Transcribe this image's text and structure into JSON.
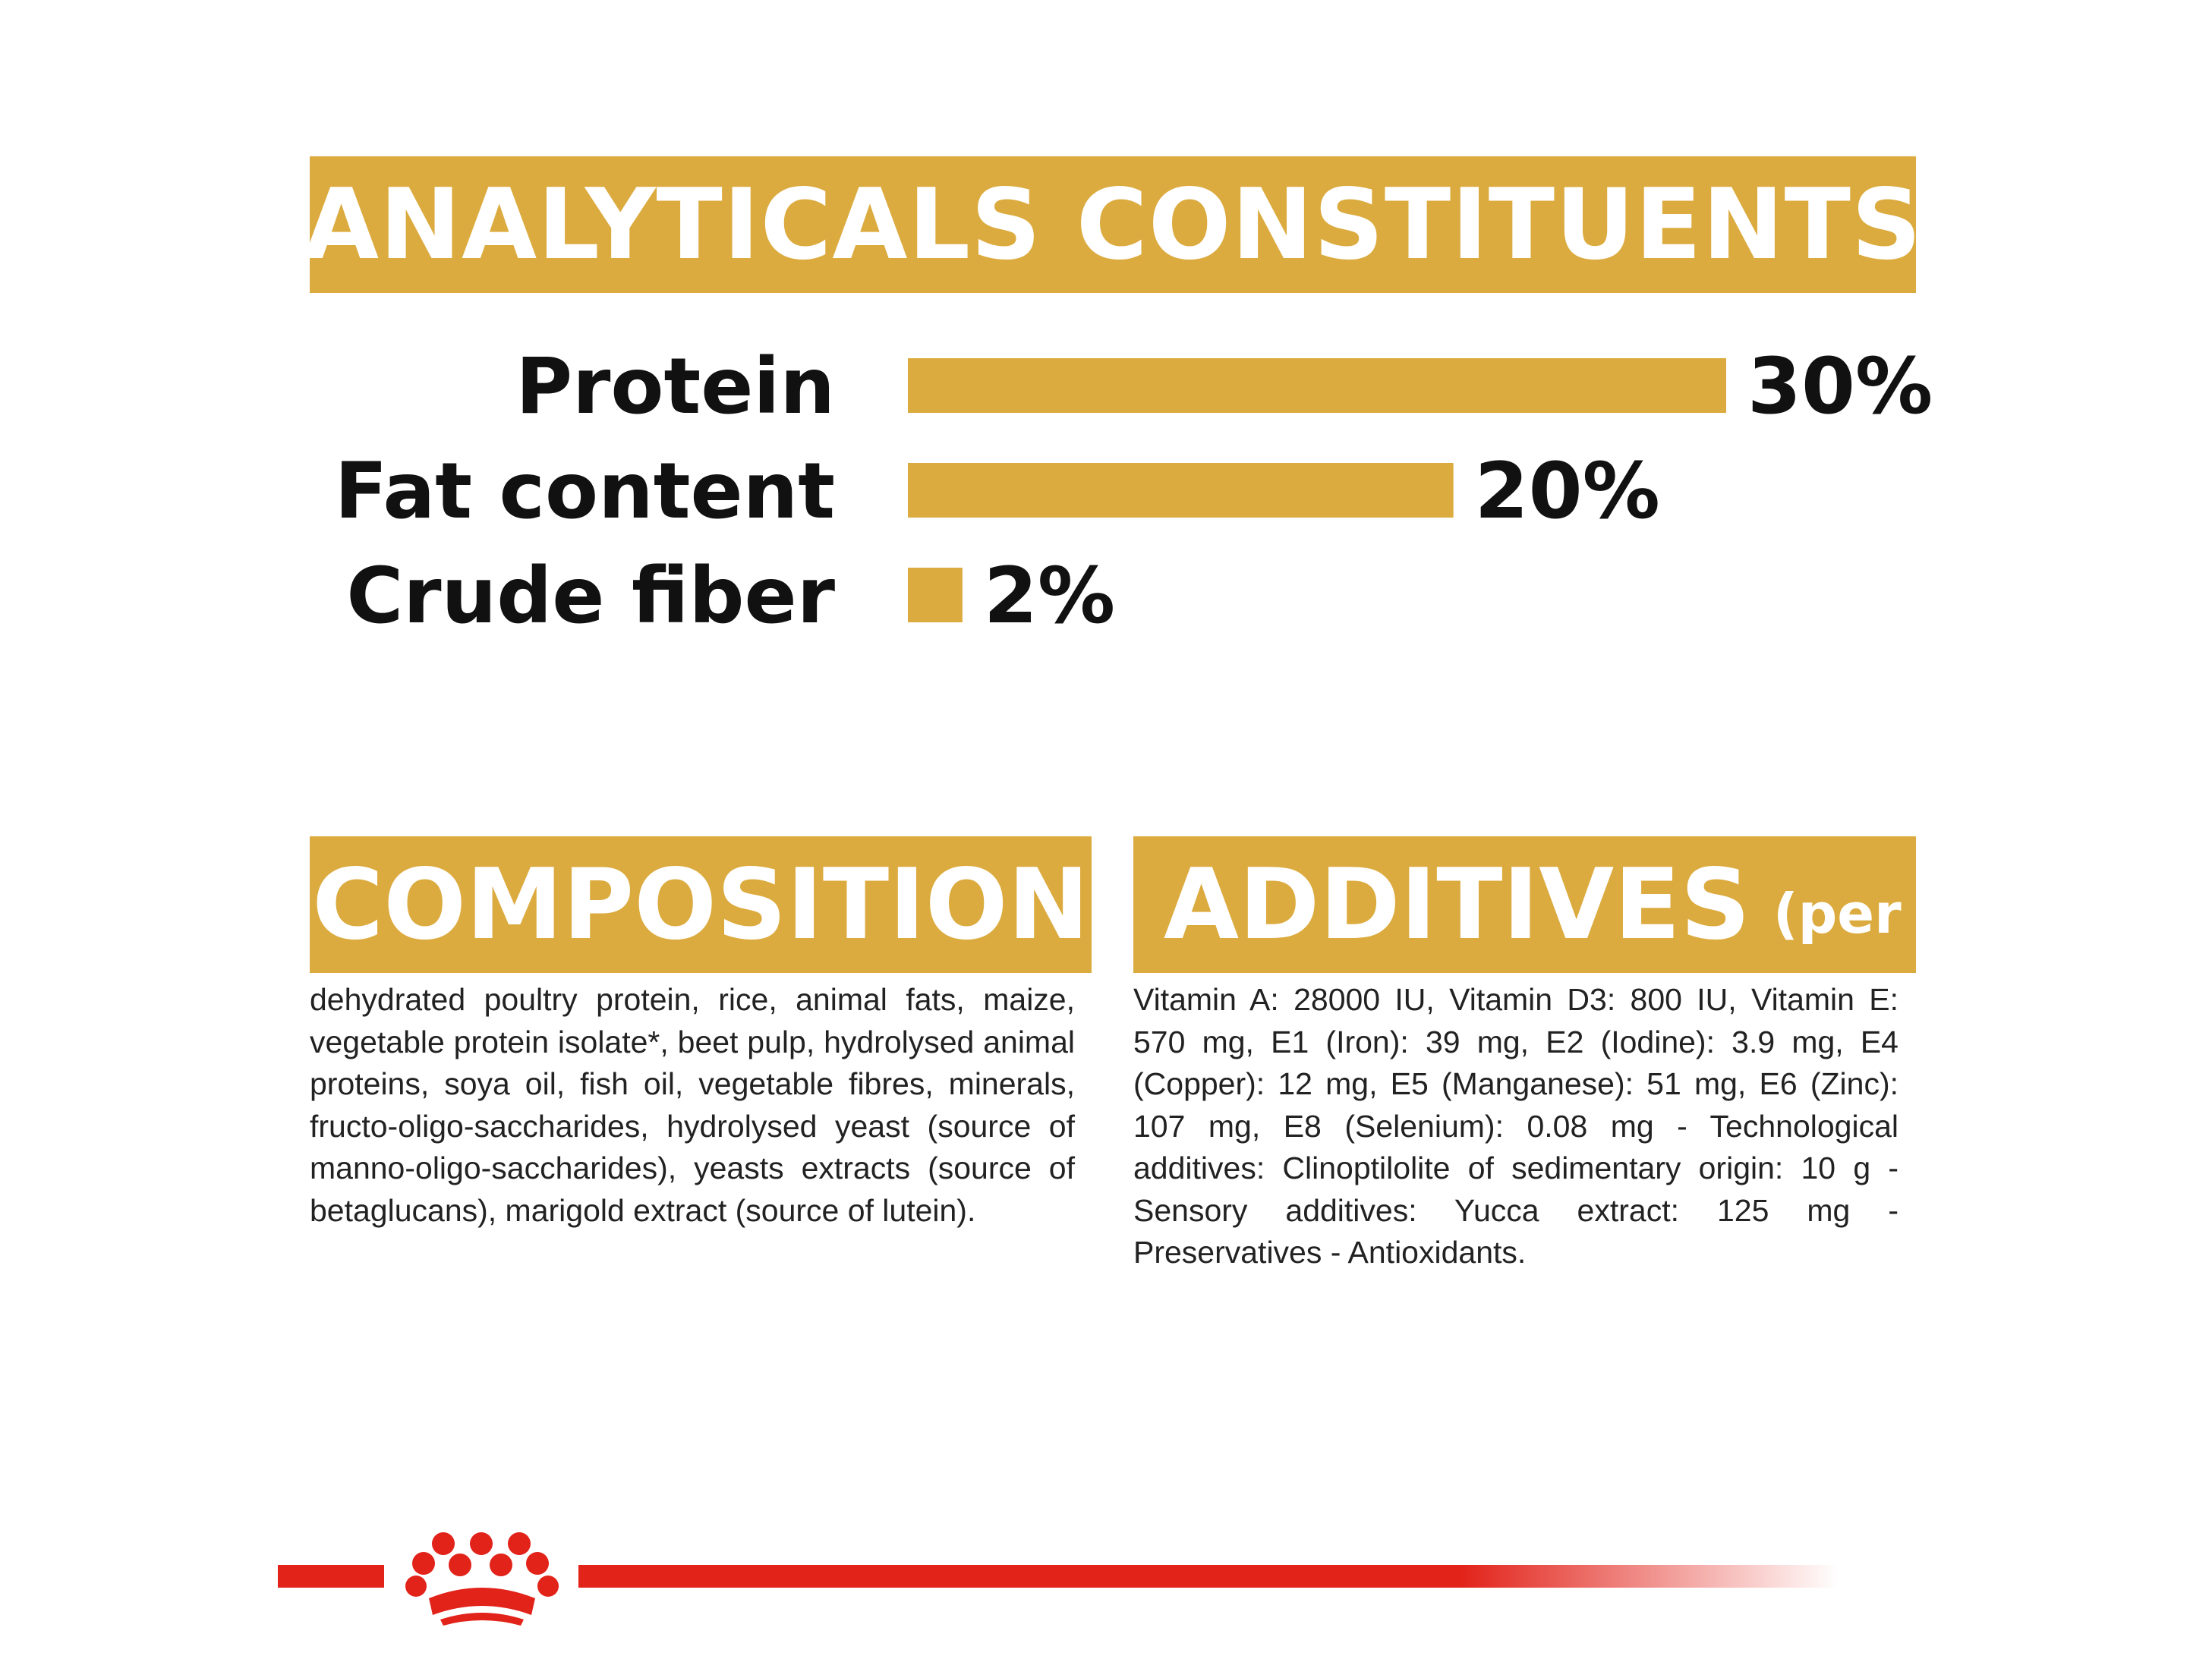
{
  "sections": {
    "analyticals_title": "ANALYTICALS CONSTITUENTS",
    "composition_title": "COMPOSITION",
    "additives_title": "ADDITIVES",
    "additives_suffix": "(per kg)"
  },
  "chart_data": {
    "type": "bar",
    "orientation": "horizontal",
    "categories": [
      "Protein",
      "Fat content",
      "Crude fiber"
    ],
    "values": [
      30,
      20,
      2
    ],
    "value_labels": [
      "30%",
      "20%",
      "2%"
    ],
    "unit": "%",
    "xlim": [
      0,
      30
    ],
    "grid": false,
    "bar_color": "#dcab3f"
  },
  "composition_text": "dehydrated poultry protein, rice, animal fats, maize, vegetable protein isolate*, beet pulp, hydrolysed animal proteins, soya oil, fish oil, vegetable fibres, minerals, fructo-oligo-saccharides, hydrolysed yeast (source of manno-oligo-saccharides), yeasts extracts (source of betaglucans), marigold extract (source of lutein).",
  "additives_text": "Vitamin A: 28000 IU, Vitamin D3: 800 IU, Vitamin E: 570 mg, E1 (Iron): 39 mg, E2 (Iodine): 3.9 mg, E4 (Copper): 12 mg, E5 (Manganese): 51 mg, E6 (Zinc): 107 mg, E8 (Selenium): 0.08 mg - Technological additives: Clinoptilolite of sedimentary origin: 10 g - Sensory additives: Yucca extract: 125 mg - Preservatives - Antioxidants.",
  "colors": {
    "accent": "#dcab3f",
    "brand_red": "#e2231a",
    "text": "#111111"
  },
  "footer": {
    "logo_icon": "crown-icon"
  }
}
